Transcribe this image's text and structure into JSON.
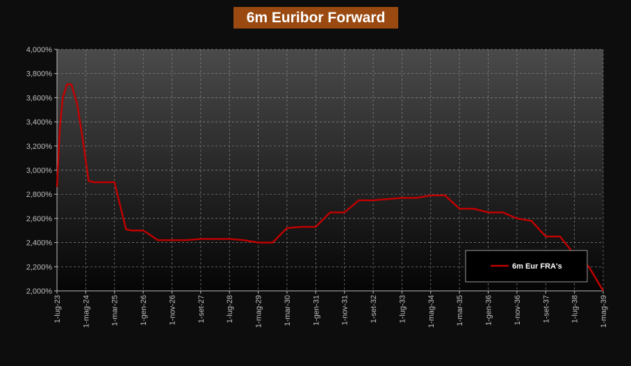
{
  "chart_data": {
    "type": "line",
    "title": "6m Euribor Forward",
    "xlabel": "",
    "ylabel": "",
    "ylim": [
      2.0,
      4.0
    ],
    "yticks": [
      "4,000%",
      "3,800%",
      "3,600%",
      "3,400%",
      "3,200%",
      "3,000%",
      "2,800%",
      "2,600%",
      "2,400%",
      "2,200%",
      "2,000%"
    ],
    "xticks": [
      "1-lug-23",
      "1-mag-24",
      "1-mar-25",
      "1-gen-26",
      "1-nov-26",
      "1-set-27",
      "1-lug-28",
      "1-mag-29",
      "1-mar-30",
      "1-gen-31",
      "1-nov-31",
      "1-set-32",
      "1-lug-33",
      "1-mag-34",
      "1-mar-35",
      "1-gen-36",
      "1-nov-36",
      "1-set-37",
      "1-lug-38",
      "1-mag-39"
    ],
    "grid": true,
    "legend_position": "bottom-right",
    "series": [
      {
        "name": "6m Eur FRA's",
        "color": "#c00000",
        "x": [
          0,
          0.1,
          0.2,
          0.35,
          0.5,
          0.7,
          0.9,
          1.1,
          1.3,
          1.5,
          2.0,
          2.4,
          2.6,
          3.0,
          3.2,
          3.5,
          4.0,
          4.5,
          5.0,
          5.5,
          6.0,
          6.5,
          7.0,
          7.5,
          8.0,
          8.5,
          9.0,
          9.5,
          10.0,
          10.5,
          11.0,
          11.5,
          12.0,
          12.5,
          13.0,
          13.5,
          14.0,
          14.5,
          15.0,
          15.5,
          16.0,
          16.5,
          17.0,
          17.5,
          18.0,
          18.5,
          19.0
        ],
        "values": [
          2.86,
          3.35,
          3.6,
          3.71,
          3.71,
          3.55,
          3.25,
          2.91,
          2.9,
          2.9,
          2.9,
          2.51,
          2.5,
          2.5,
          2.47,
          2.42,
          2.42,
          2.42,
          2.43,
          2.43,
          2.43,
          2.42,
          2.4,
          2.4,
          2.52,
          2.53,
          2.53,
          2.65,
          2.65,
          2.75,
          2.75,
          2.76,
          2.77,
          2.77,
          2.79,
          2.79,
          2.68,
          2.68,
          2.65,
          2.65,
          2.6,
          2.58,
          2.45,
          2.45,
          2.3,
          2.2,
          2.0
        ]
      }
    ]
  }
}
